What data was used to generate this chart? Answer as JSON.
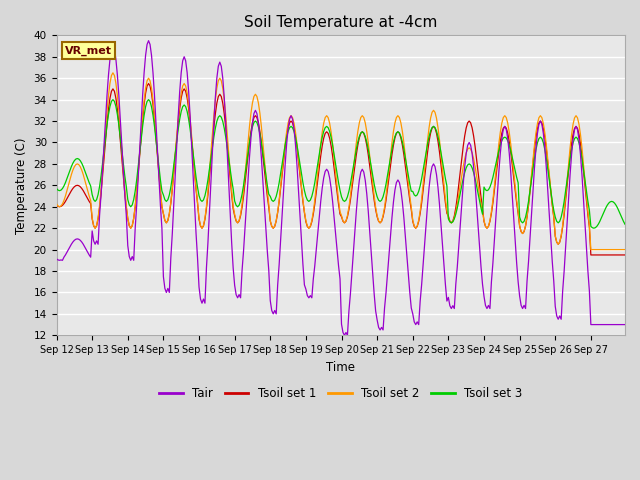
{
  "title": "Soil Temperature at -4cm",
  "xlabel": "Time",
  "ylabel": "Temperature (C)",
  "ylim": [
    12,
    40
  ],
  "yticks": [
    12,
    14,
    16,
    18,
    20,
    22,
    24,
    26,
    28,
    30,
    32,
    34,
    36,
    38,
    40
  ],
  "colors": {
    "Tair": "#9900cc",
    "Tsoil_set1": "#cc0000",
    "Tsoil_set2": "#ff9900",
    "Tsoil_set3": "#00cc00"
  },
  "legend_labels": [
    "Tair",
    "Tsoil set 1",
    "Tsoil set 2",
    "Tsoil set 3"
  ],
  "annotation_text": "VR_met",
  "annotation_box_color": "#ffff99",
  "annotation_box_edge": "#996600",
  "annotation_text_color": "#660000",
  "background_color": "#d8d8d8",
  "plot_bg_color": "#e8e8e8",
  "grid_color": "#ffffff",
  "xtick_labels": [
    "Sep 12",
    "Sep 13",
    "Sep 14",
    "Sep 15",
    "Sep 16",
    "Sep 17",
    "Sep 18",
    "Sep 19",
    "Sep 20",
    "Sep 21",
    "Sep 22",
    "Sep 23",
    "Sep 24",
    "Sep 25",
    "Sep 26",
    "Sep 27"
  ],
  "num_days": 16,
  "pts_per_day": 24,
  "Tair_peaks": [
    21.0,
    39.0,
    39.5,
    38.0,
    37.5,
    33.0,
    32.5,
    27.5,
    27.5,
    26.5,
    28.0,
    30.0,
    31.5,
    32.0,
    31.5,
    13.0
  ],
  "Tair_troughs": [
    19.0,
    20.5,
    19.0,
    16.0,
    15.0,
    15.5,
    14.0,
    15.5,
    12.0,
    12.5,
    13.0,
    14.5,
    14.5,
    14.5,
    13.5,
    13.0
  ],
  "Ts1_peaks": [
    26.0,
    35.0,
    35.5,
    35.0,
    34.5,
    32.5,
    32.0,
    31.0,
    31.0,
    31.0,
    31.5,
    32.0,
    31.5,
    32.0,
    31.5,
    19.5
  ],
  "Ts1_troughs": [
    24.0,
    22.0,
    22.0,
    22.5,
    22.0,
    22.5,
    22.0,
    22.0,
    22.5,
    22.5,
    22.0,
    22.5,
    22.0,
    21.5,
    20.5,
    19.5
  ],
  "Ts2_peaks": [
    28.0,
    36.5,
    36.0,
    35.5,
    36.0,
    34.5,
    32.5,
    32.5,
    32.5,
    32.5,
    33.0,
    29.5,
    32.5,
    32.5,
    32.5,
    20.0
  ],
  "Ts2_troughs": [
    24.0,
    22.0,
    22.0,
    22.5,
    22.0,
    22.5,
    22.0,
    22.0,
    22.5,
    22.5,
    22.0,
    22.5,
    22.0,
    21.5,
    20.5,
    20.0
  ],
  "Ts3_peaks": [
    28.5,
    34.0,
    34.0,
    33.5,
    32.5,
    32.0,
    31.5,
    31.5,
    31.0,
    31.0,
    31.5,
    28.0,
    30.5,
    30.5,
    30.5,
    24.5
  ],
  "Ts3_troughs": [
    25.5,
    24.5,
    24.0,
    24.5,
    24.5,
    24.0,
    24.5,
    24.5,
    24.5,
    24.5,
    25.0,
    22.5,
    25.5,
    22.5,
    22.5,
    22.0
  ]
}
